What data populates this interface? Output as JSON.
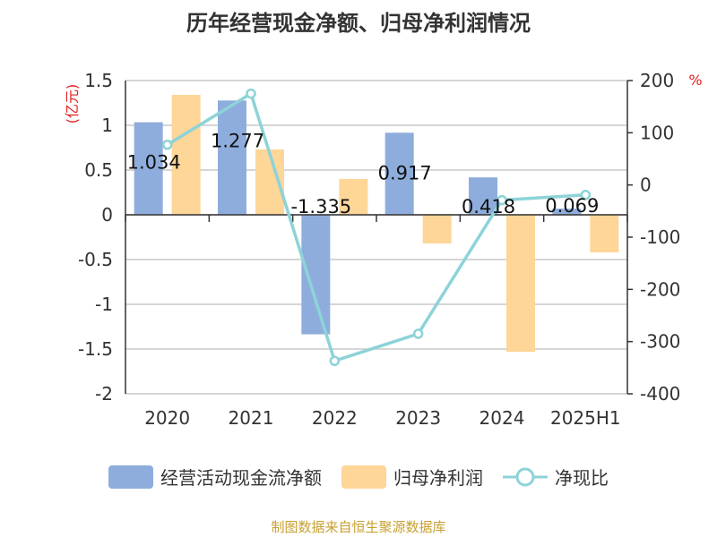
{
  "chart_data": {
    "type": "bar",
    "title": "历年经营现金净额、归母净利润情况",
    "categories": [
      "2020",
      "2021",
      "2022",
      "2023",
      "2024",
      "2025H1"
    ],
    "left_axis": {
      "unit_label": "(亿元)",
      "ylim": [
        -2,
        1.5
      ],
      "ticks": [
        "1.5",
        "1",
        "0.5",
        "0",
        "-0.5",
        "-1",
        "-1.5",
        "-2"
      ],
      "tick_values": [
        1.5,
        1,
        0.5,
        0,
        -0.5,
        -1,
        -1.5,
        -2
      ]
    },
    "right_axis": {
      "unit_label": "%",
      "ylim": [
        -400,
        200
      ],
      "ticks": [
        "200",
        "100",
        "0",
        "-100",
        "-200",
        "-300",
        "-400"
      ],
      "tick_values": [
        200,
        100,
        0,
        -100,
        -200,
        -300,
        -400
      ]
    },
    "series": [
      {
        "name": "经营活动现金流净额",
        "type": "bar",
        "axis": "left",
        "color": "#8eaddc",
        "values": [
          1.034,
          1.277,
          -1.335,
          0.917,
          0.418,
          0.069
        ],
        "labels": [
          "1.034",
          "1.277",
          "-1.335",
          "0.917",
          "0.418",
          "0.069"
        ]
      },
      {
        "name": "归母净利润",
        "type": "bar",
        "axis": "left",
        "color": "#fdd698",
        "values": [
          1.34,
          0.73,
          0.4,
          -0.32,
          -1.53,
          -0.42
        ]
      },
      {
        "name": "净现比",
        "type": "line",
        "axis": "right",
        "color": "#8dd3d8",
        "values": [
          77,
          175,
          -337,
          -285,
          -29,
          -19
        ]
      }
    ],
    "grid": true,
    "legend_position": "bottom"
  },
  "source_note": "制图数据来自恒生聚源数据库"
}
